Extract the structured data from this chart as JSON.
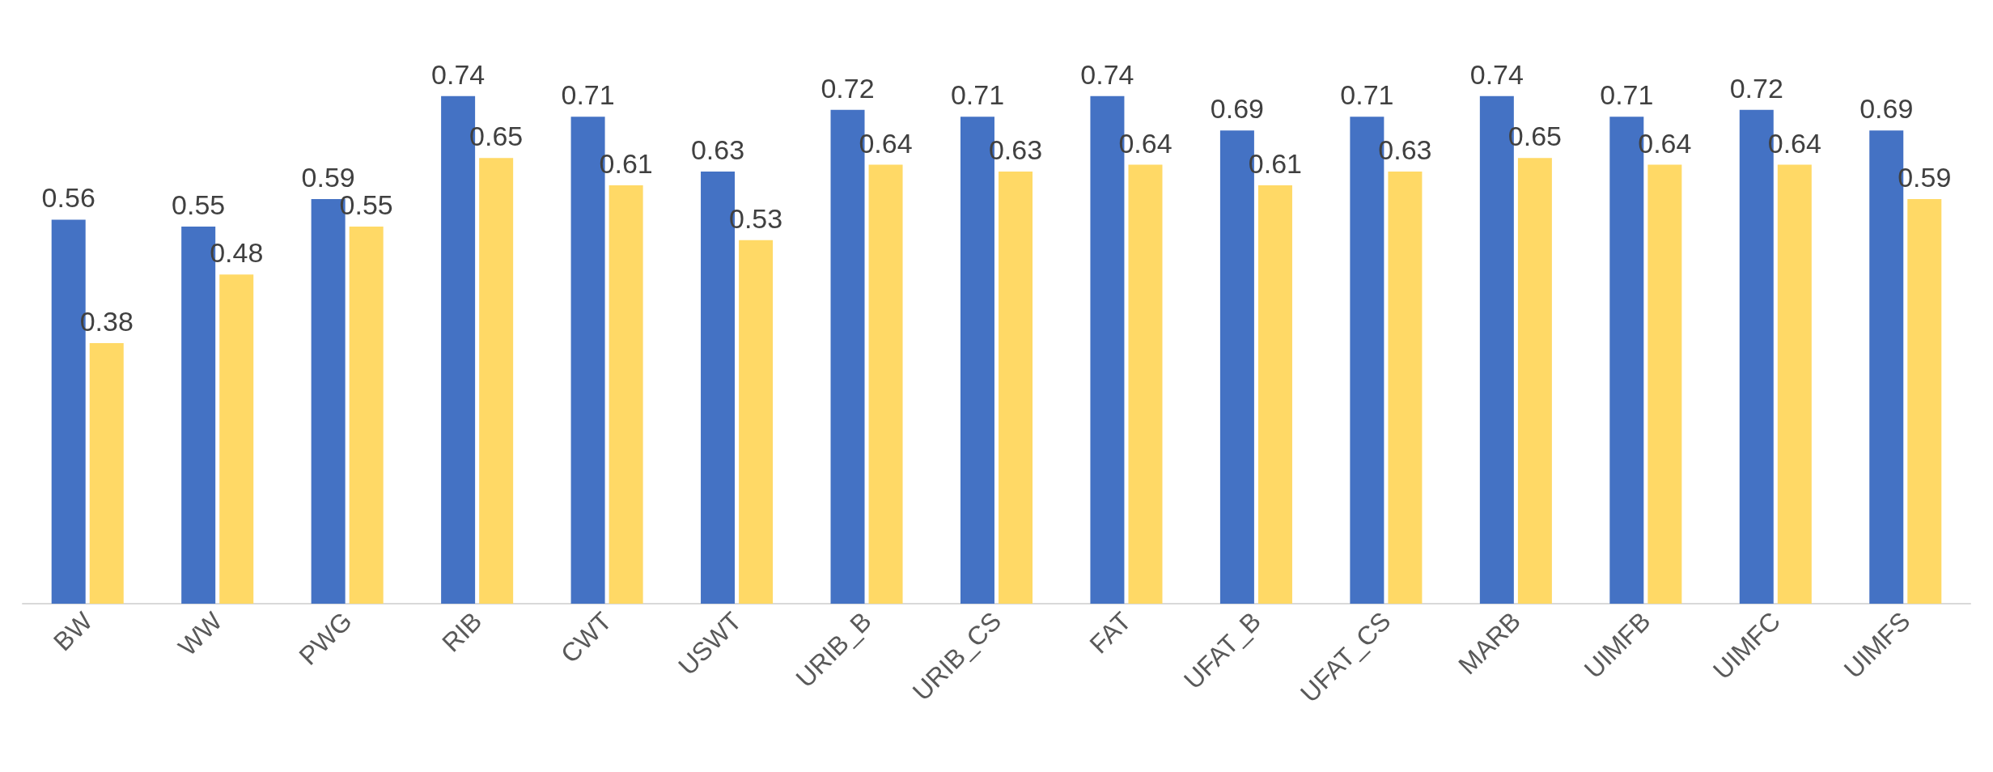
{
  "chart_data": {
    "type": "bar",
    "categories": [
      "BW",
      "WW",
      "PWG",
      "RIB",
      "CWT",
      "USWT",
      "URIB_B",
      "URIB_CS",
      "FAT",
      "UFAT_B",
      "UFAT_CS",
      "MARB",
      "UIMFB",
      "UIMFC",
      "UIMFS"
    ],
    "series": [
      {
        "color": "#4472c4",
        "values": [
          0.56,
          0.55,
          0.59,
          0.74,
          0.71,
          0.63,
          0.72,
          0.71,
          0.74,
          0.69,
          0.71,
          0.74,
          0.71,
          0.72,
          0.69
        ]
      },
      {
        "color": "#ffd966",
        "values": [
          0.38,
          0.48,
          0.55,
          0.65,
          0.61,
          0.53,
          0.64,
          0.63,
          0.64,
          0.61,
          0.63,
          0.65,
          0.64,
          0.64,
          0.59
        ]
      }
    ],
    "data_labels": true,
    "tick_labels": "x"
  }
}
